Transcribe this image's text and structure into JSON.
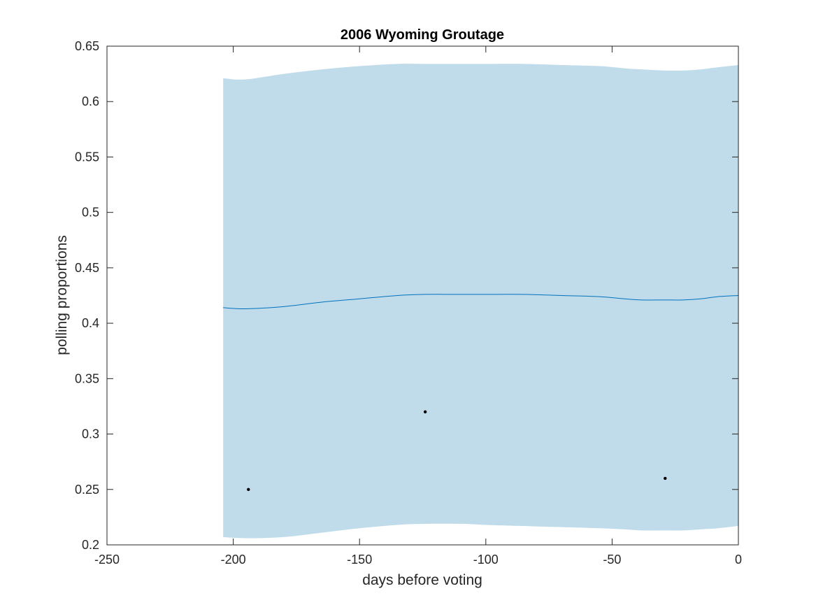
{
  "chart_data": {
    "type": "line",
    "title": "2006 Wyoming Groutage",
    "xlabel": "days before voting",
    "ylabel": "polling proportions",
    "xlim": [
      -250,
      0
    ],
    "ylim": [
      0.2,
      0.65
    ],
    "xticks": [
      -250,
      -200,
      -150,
      -100,
      -50,
      0
    ],
    "xtick_labels": [
      "-250",
      "-200",
      "-150",
      "-100",
      "-50",
      "0"
    ],
    "yticks": [
      0.2,
      0.25,
      0.3,
      0.35,
      0.4,
      0.45,
      0.5,
      0.55,
      0.6,
      0.65
    ],
    "ytick_labels": [
      "0.2",
      "0.25",
      "0.3",
      "0.35",
      "0.4",
      "0.45",
      "0.5",
      "0.55",
      "0.6",
      "0.65"
    ],
    "grid": false,
    "colors": {
      "band": "#c0dcea",
      "mean": "#0072bd",
      "points": "#000000",
      "axes": "#262626"
    },
    "band": {
      "x": [
        -204,
        -195,
        -180,
        -165,
        -150,
        -135,
        -124,
        -110,
        -100,
        -85,
        -70,
        -55,
        -45,
        -38,
        -29,
        -22,
        -15,
        -8,
        0
      ],
      "upper": [
        0.621,
        0.62,
        0.625,
        0.629,
        0.632,
        0.634,
        0.634,
        0.634,
        0.634,
        0.634,
        0.633,
        0.632,
        0.63,
        0.629,
        0.628,
        0.628,
        0.629,
        0.631,
        0.633
      ],
      "lower": [
        0.207,
        0.206,
        0.207,
        0.211,
        0.215,
        0.218,
        0.219,
        0.219,
        0.218,
        0.217,
        0.216,
        0.215,
        0.214,
        0.213,
        0.213,
        0.213,
        0.214,
        0.215,
        0.217
      ]
    },
    "series": [
      {
        "type": "line",
        "x": [
          -204,
          -195,
          -180,
          -165,
          -150,
          -135,
          -124,
          -110,
          -100,
          -85,
          -70,
          -55,
          -45,
          -38,
          -29,
          -22,
          -15,
          -8,
          0
        ],
        "y": [
          0.414,
          0.413,
          0.415,
          0.419,
          0.422,
          0.425,
          0.426,
          0.426,
          0.426,
          0.426,
          0.425,
          0.424,
          0.422,
          0.421,
          0.421,
          0.421,
          0.422,
          0.424,
          0.425
        ]
      },
      {
        "type": "scatter",
        "x": [
          -194,
          -124,
          -29
        ],
        "y": [
          0.25,
          0.32,
          0.26
        ]
      }
    ]
  }
}
